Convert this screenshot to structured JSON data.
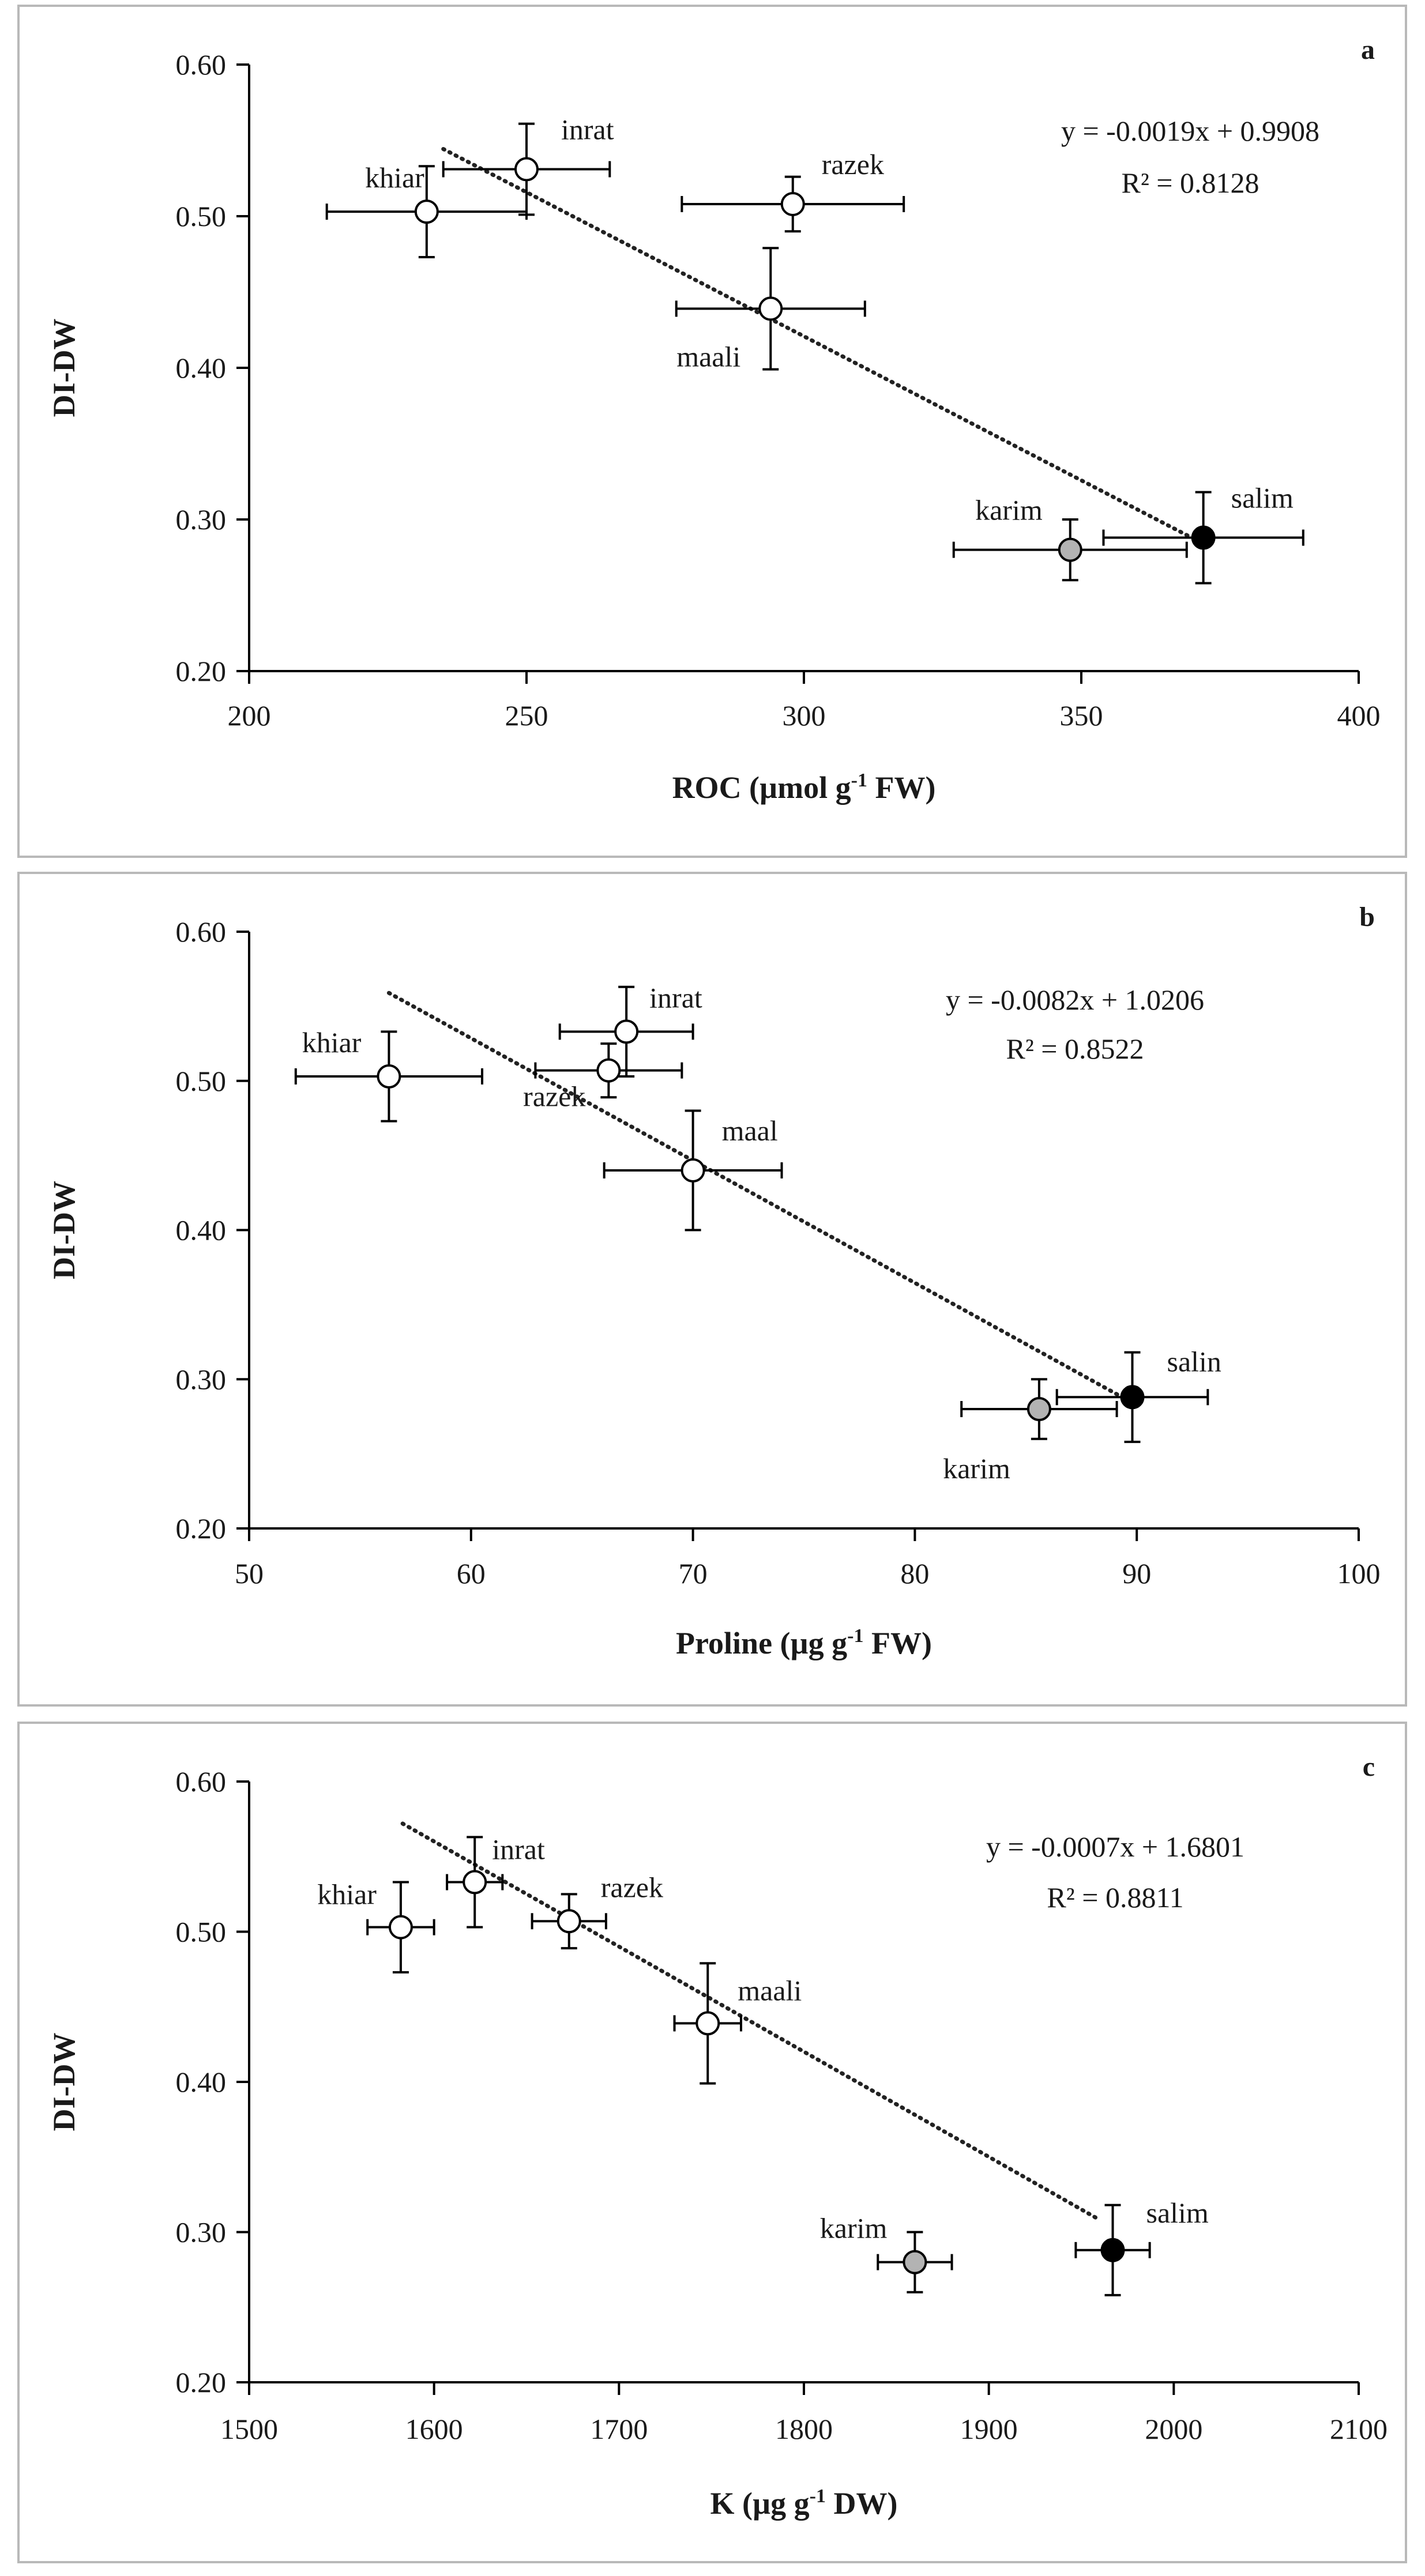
{
  "chart_data": [
    {
      "type": "scatter",
      "panel_letter": "a",
      "xlabel": "ROC (µmol g-1 FW)",
      "xlabel_parts": [
        "ROC (µmol g",
        "-1",
        " FW)"
      ],
      "ylabel": "DI-DW",
      "xlim": [
        200,
        400
      ],
      "ylim": [
        0.2,
        0.6
      ],
      "xticks": [
        "200",
        "250",
        "300",
        "350",
        "400"
      ],
      "yticks": [
        "0.20",
        "0.30",
        "0.40",
        "0.50",
        "0.60"
      ],
      "equation": "y = -0.0019x + 0.9908",
      "r2": "R² = 0.8128",
      "trendline": {
        "x": [
          235,
          370
        ],
        "slope": -0.0019,
        "intercept": 0.9908
      },
      "points": [
        {
          "name": "khiar",
          "x": 232,
          "y": 0.503,
          "xerr": 18,
          "yerr": 0.03,
          "fill": "#ffffff"
        },
        {
          "name": "inrat",
          "x": 250,
          "y": 0.531,
          "xerr": 15,
          "yerr": 0.03,
          "fill": "#ffffff"
        },
        {
          "name": "razek",
          "x": 298,
          "y": 0.508,
          "xerr": 20,
          "yerr": 0.018,
          "fill": "#ffffff"
        },
        {
          "name": "maali",
          "x": 294,
          "y": 0.439,
          "xerr": 17,
          "yerr": 0.04,
          "fill": "#ffffff"
        },
        {
          "name": "karim",
          "x": 348,
          "y": 0.28,
          "xerr": 21,
          "yerr": 0.02,
          "fill": "#b3b3b3"
        },
        {
          "name": "salim",
          "x": 372,
          "y": 0.288,
          "xerr": 18,
          "yerr": 0.03,
          "fill": "#000000"
        }
      ]
    },
    {
      "type": "scatter",
      "panel_letter": "b",
      "xlabel": "Proline (µg g-1 FW)",
      "xlabel_parts": [
        "Proline (µg g",
        "-1",
        " FW)"
      ],
      "ylabel": "DI-DW",
      "xlim": [
        50,
        100
      ],
      "ylim": [
        0.2,
        0.6
      ],
      "xticks": [
        "50",
        "60",
        "70",
        "80",
        "90",
        "100"
      ],
      "yticks": [
        "0.20",
        "0.30",
        "0.40",
        "0.50",
        "0.60"
      ],
      "equation": "y = -0.0082x + 1.0206",
      "r2": "R² = 0.8522",
      "trendline": {
        "x": [
          56.3,
          89.3
        ],
        "slope": -0.0082,
        "intercept": 1.0206
      },
      "points": [
        {
          "name": "khiar",
          "x": 56.3,
          "y": 0.503,
          "xerr": 4.2,
          "yerr": 0.03,
          "fill": "#ffffff"
        },
        {
          "name": "inrat",
          "x": 67.0,
          "y": 0.533,
          "xerr": 3.0,
          "yerr": 0.03,
          "fill": "#ffffff"
        },
        {
          "name": "razek",
          "x": 66.2,
          "y": 0.507,
          "xerr": 3.3,
          "yerr": 0.018,
          "fill": "#ffffff"
        },
        {
          "name": "maal",
          "x": 70.0,
          "y": 0.44,
          "xerr": 4.0,
          "yerr": 0.04,
          "fill": "#ffffff"
        },
        {
          "name": "karim",
          "x": 85.6,
          "y": 0.28,
          "xerr": 3.5,
          "yerr": 0.02,
          "fill": "#b3b3b3"
        },
        {
          "name": "salin",
          "x": 89.8,
          "y": 0.288,
          "xerr": 3.4,
          "yerr": 0.03,
          "fill": "#000000"
        }
      ]
    },
    {
      "type": "scatter",
      "panel_letter": "c",
      "xlabel": "K (µg g-1 DW)",
      "xlabel_parts": [
        "K (µg g",
        "-1",
        " DW)"
      ],
      "ylabel": "DI-DW",
      "xlim": [
        1500,
        2100
      ],
      "ylim": [
        0.2,
        0.6
      ],
      "xticks": [
        "1500",
        "1600",
        "1700",
        "1800",
        "1900",
        "2000",
        "2100"
      ],
      "yticks": [
        "0.20",
        "0.30",
        "0.40",
        "0.50",
        "0.60"
      ],
      "equation": "y = -0.0007x + 1.6801",
      "r2": "R² = 0.8811",
      "trendline": {
        "x": [
          1583,
          1960
        ],
        "slope": -0.0007,
        "intercept": 1.6801
      },
      "points": [
        {
          "name": "khiar",
          "x": 1582,
          "y": 0.503,
          "xerr": 18,
          "yerr": 0.03,
          "fill": "#ffffff"
        },
        {
          "name": "inrat",
          "x": 1622,
          "y": 0.533,
          "xerr": 15,
          "yerr": 0.03,
          "fill": "#ffffff"
        },
        {
          "name": "razek",
          "x": 1673,
          "y": 0.507,
          "xerr": 20,
          "yerr": 0.018,
          "fill": "#ffffff"
        },
        {
          "name": "maali",
          "x": 1748,
          "y": 0.439,
          "xerr": 18,
          "yerr": 0.04,
          "fill": "#ffffff"
        },
        {
          "name": "karim",
          "x": 1860,
          "y": 0.28,
          "xerr": 20,
          "yerr": 0.02,
          "fill": "#b3b3b3"
        },
        {
          "name": "salim",
          "x": 1967,
          "y": 0.288,
          "xerr": 20,
          "yerr": 0.03,
          "fill": "#000000"
        }
      ]
    }
  ]
}
